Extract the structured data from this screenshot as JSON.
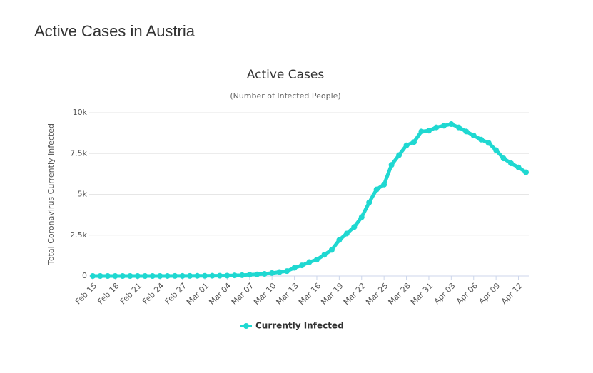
{
  "heading": "Active Cases in Austria",
  "chart_data": {
    "type": "line",
    "title": "Active Cases",
    "subtitle": "(Number of Infected People)",
    "y_label": "Total Coronavirus Currently Infected",
    "categories": [
      "Feb 15",
      null,
      null,
      "Feb 18",
      null,
      null,
      "Feb 21",
      null,
      null,
      "Feb 24",
      null,
      null,
      "Feb 27",
      null,
      null,
      "Mar 01",
      null,
      null,
      "Mar 04",
      null,
      null,
      "Mar 07",
      null,
      null,
      "Mar 10",
      null,
      null,
      "Mar 13",
      null,
      null,
      "Mar 16",
      null,
      null,
      "Mar 19",
      null,
      null,
      "Mar 22",
      null,
      null,
      "Mar 25",
      null,
      null,
      "Mar 28",
      null,
      null,
      "Mar 31",
      null,
      null,
      "Apr 03",
      null,
      null,
      "Apr 06",
      null,
      null,
      "Apr 09",
      null,
      null,
      "Apr 12",
      null
    ],
    "series": [
      {
        "name": "Currently Infected",
        "color": "#1fd8d1",
        "values": [
          0,
          0,
          0,
          0,
          0,
          0,
          0,
          0,
          0,
          0,
          2,
          3,
          3,
          5,
          9,
          10,
          14,
          18,
          24,
          37,
          47,
          79,
          99,
          130,
          180,
          240,
          300,
          500,
          650,
          850,
          1000,
          1300,
          1600,
          2200,
          2600,
          3000,
          3600,
          4500,
          5300,
          5600,
          6800,
          7400,
          8000,
          8200,
          8850,
          8900,
          9100,
          9200,
          9300,
          9100,
          8850,
          8600,
          8350,
          8150,
          7700,
          7200,
          6900,
          6650,
          6350
        ]
      }
    ],
    "ylim": [
      0,
      10000
    ],
    "yticks": [
      0,
      {
        "value": 2500,
        "label": "2.5k"
      },
      {
        "value": 5000,
        "label": "5k"
      },
      {
        "value": 7500,
        "label": "7.5k"
      },
      {
        "value": 10000,
        "label": "10k"
      }
    ],
    "grid": true,
    "legend": "bottom"
  }
}
